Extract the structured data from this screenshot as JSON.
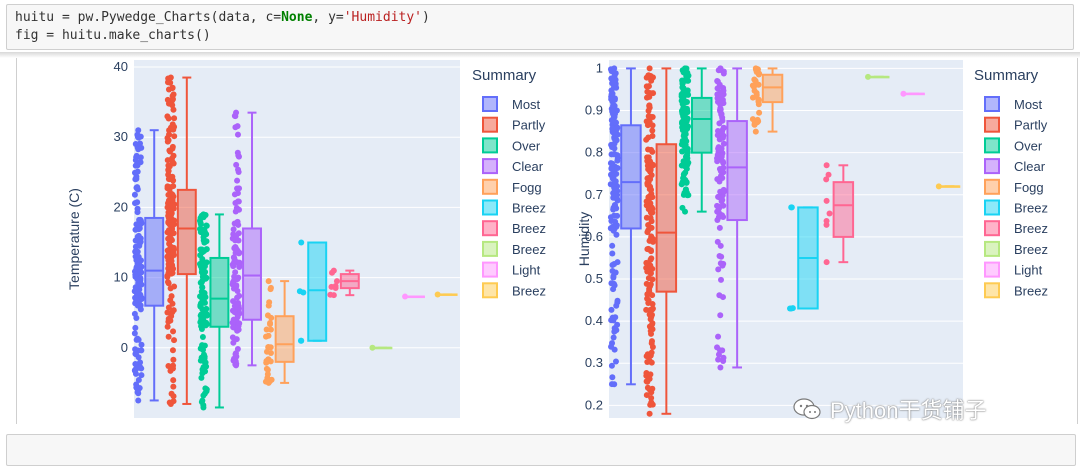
{
  "code": {
    "line1": {
      "pre": "huitu = pw.Pywedge_Charts(data, c=",
      "kw": "None",
      "mid": ", y=",
      "str": "'Humidity'",
      "post": ")"
    },
    "line2": "fig = huitu.make_charts()"
  },
  "watermark": "Python干货铺子",
  "colors": {
    "plot_bg": "#e5ecf6",
    "series": [
      "#636efa",
      "#ef553b",
      "#00cc96",
      "#ab63fa",
      "#ffa15a",
      "#19d3f3",
      "#ff6692",
      "#b6e880",
      "#ff97ff",
      "#fecb52"
    ]
  },
  "legend": {
    "title": "Summary",
    "items": [
      "Most",
      "Partly",
      "Over",
      "Clear",
      "Fogg",
      "Breez",
      "Breez",
      "Breez",
      "Light",
      "Breez"
    ]
  },
  "chart_data": [
    {
      "type": "box",
      "ylabel": "Temperature (C)",
      "ylim": [
        -10,
        41
      ],
      "yticks": [
        0,
        10,
        20,
        30,
        40
      ],
      "grid": true,
      "legend_position": "right",
      "series": [
        {
          "name": "Most",
          "min": -7.5,
          "q1": 6,
          "median": 11,
          "q3": 18.5,
          "max": 31
        },
        {
          "name": "Partly",
          "min": -8,
          "q1": 10.5,
          "median": 17,
          "q3": 22.5,
          "max": 38.5
        },
        {
          "name": "Over",
          "min": -8.5,
          "q1": 3,
          "median": 7,
          "q3": 12.8,
          "max": 19
        },
        {
          "name": "Clear",
          "min": -2.5,
          "q1": 4,
          "median": 10.3,
          "q3": 17,
          "max": 33.5
        },
        {
          "name": "Fogg",
          "min": -5,
          "q1": -2,
          "median": 0.5,
          "q3": 4.5,
          "max": 9.5
        },
        {
          "name": "Breez",
          "min": 1,
          "q1": 1,
          "median": 8.2,
          "q3": 15,
          "max": 15
        },
        {
          "name": "Breez",
          "min": 7.5,
          "q1": 8.5,
          "median": 9.5,
          "q3": 10.5,
          "max": 11
        },
        {
          "name": "Breez",
          "min": 0,
          "q1": 0,
          "median": 0,
          "q3": 0,
          "max": 0
        },
        {
          "name": "Light",
          "min": 7.3,
          "q1": 7.3,
          "median": 7.3,
          "q3": 7.3,
          "max": 7.3
        },
        {
          "name": "Breez",
          "min": 7.6,
          "q1": 7.6,
          "median": 7.6,
          "q3": 7.6,
          "max": 7.6
        }
      ]
    },
    {
      "type": "box",
      "ylabel": "Humidity",
      "ylim": [
        0.17,
        1.02
      ],
      "yticks": [
        0.2,
        0.3,
        0.4,
        0.5,
        0.6,
        0.7,
        0.8,
        0.9,
        1
      ],
      "grid": true,
      "legend_position": "right",
      "series": [
        {
          "name": "Most",
          "min": 0.25,
          "q1": 0.62,
          "median": 0.73,
          "q3": 0.865,
          "max": 1.0
        },
        {
          "name": "Partly",
          "min": 0.18,
          "q1": 0.47,
          "median": 0.61,
          "q3": 0.82,
          "max": 1.0
        },
        {
          "name": "Over",
          "min": 0.66,
          "q1": 0.8,
          "median": 0.88,
          "q3": 0.93,
          "max": 1.0
        },
        {
          "name": "Clear",
          "min": 0.29,
          "q1": 0.64,
          "median": 0.765,
          "q3": 0.875,
          "max": 1.0
        },
        {
          "name": "Fogg",
          "min": 0.85,
          "q1": 0.92,
          "median": 0.955,
          "q3": 0.985,
          "max": 1.0
        },
        {
          "name": "Breez",
          "min": 0.43,
          "q1": 0.43,
          "median": 0.55,
          "q3": 0.67,
          "max": 0.67
        },
        {
          "name": "Breez",
          "min": 0.54,
          "q1": 0.6,
          "median": 0.675,
          "q3": 0.73,
          "max": 0.77
        },
        {
          "name": "Breez",
          "min": 0.98,
          "q1": 0.98,
          "median": 0.98,
          "q3": 0.98,
          "max": 0.98
        },
        {
          "name": "Light",
          "min": 0.94,
          "q1": 0.94,
          "median": 0.94,
          "q3": 0.94,
          "max": 0.94
        },
        {
          "name": "Breez",
          "min": 0.72,
          "q1": 0.72,
          "median": 0.72,
          "q3": 0.72,
          "max": 0.72
        }
      ]
    }
  ]
}
